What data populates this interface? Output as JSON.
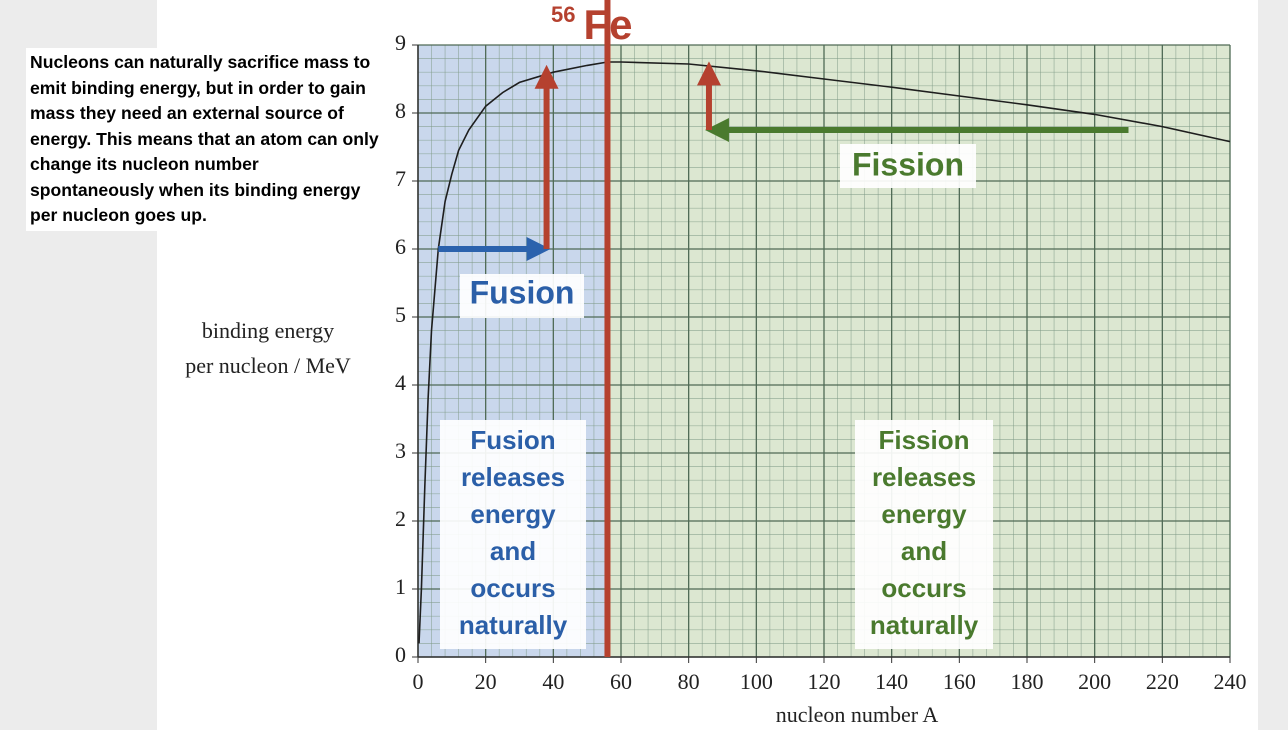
{
  "chart_data": {
    "type": "line",
    "note": "Nucleons can naturally sacrifice mass to emit binding energy, but in order to gain mass they need an external source of energy. This means that an atom can only change its nucleon number spontaneously when its binding energy per nucleon goes up.",
    "ylabel": [
      "binding energy",
      "per nucleon / MeV"
    ],
    "xlabel": "nucleon number A",
    "x": [
      0.3,
      1,
      2,
      3,
      4,
      6,
      8,
      10,
      12,
      15,
      20,
      25,
      30,
      40,
      50,
      56,
      60,
      80,
      100,
      120,
      140,
      160,
      180,
      200,
      220,
      240
    ],
    "values": [
      0.2,
      1.0,
      2.5,
      3.8,
      4.8,
      6.0,
      6.7,
      7.1,
      7.45,
      7.75,
      8.1,
      8.3,
      8.45,
      8.6,
      8.7,
      8.75,
      8.75,
      8.72,
      8.62,
      8.5,
      8.38,
      8.25,
      8.12,
      7.98,
      7.8,
      7.58
    ],
    "color": "#1e1e1e",
    "xlim": [
      0,
      240
    ],
    "ylim": [
      0,
      9
    ],
    "xticks": [
      0,
      20,
      40,
      60,
      80,
      100,
      120,
      140,
      160,
      180,
      200,
      220,
      240
    ],
    "yticks": [
      0,
      1,
      2,
      3,
      4,
      5,
      6,
      7,
      8,
      9
    ],
    "grid": true,
    "minor_divisions": 5,
    "regions": [
      {
        "from": 0,
        "to": 56,
        "color": "#c9d7ec"
      },
      {
        "from": 56,
        "to": 240,
        "color": "#dce7d1"
      }
    ],
    "marker_line": {
      "x": 56,
      "mass": "56",
      "symbol": "Fe",
      "color": "#b5412f"
    },
    "arrows": [
      {
        "x": [
          6,
          38
        ],
        "y": [
          6,
          6
        ],
        "color": "#2b62ad"
      },
      {
        "x": [
          38,
          38
        ],
        "y": [
          6,
          8.65
        ],
        "color": "#b5412f"
      },
      {
        "x": [
          210,
          86
        ],
        "y": [
          7.75,
          7.75
        ],
        "color": "#4a7a2e"
      },
      {
        "x": [
          86,
          86
        ],
        "y": [
          7.75,
          8.7
        ],
        "color": "#b5412f"
      }
    ],
    "annotations": [
      {
        "text": [
          "Fusion"
        ],
        "color": "#2b5fa8"
      },
      {
        "text": [
          "Fission"
        ],
        "color": "#4a7a2e"
      },
      {
        "text": [
          "Fusion",
          "releases",
          "energy",
          "and",
          "occurs",
          "naturally"
        ],
        "color": "#2b5fa8"
      },
      {
        "text": [
          "Fission",
          "releases",
          "energy",
          "and",
          "occurs",
          "naturally"
        ],
        "color": "#4a7a2e"
      }
    ]
  }
}
